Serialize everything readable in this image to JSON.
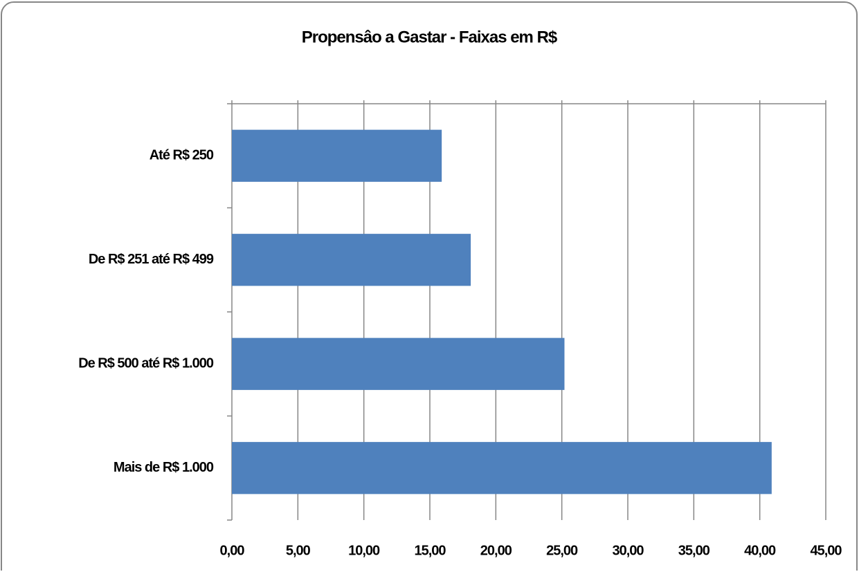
{
  "chart_data": {
    "type": "barh",
    "title": "Propensâo a Gastar -  Faixas em R$",
    "categories": [
      "Até R$ 250",
      "De R$ 251 até R$ 499",
      "De R$ 500 até R$ 1.000",
      "Mais de R$ 1.000"
    ],
    "values": [
      15.9,
      18.1,
      25.2,
      40.9
    ],
    "color": "#4f81bd",
    "xlim": [
      0,
      45
    ],
    "xticks": [
      {
        "value": 0,
        "label": "0,00"
      },
      {
        "value": 5,
        "label": "5,00"
      },
      {
        "value": 10,
        "label": "10,00"
      },
      {
        "value": 15,
        "label": "15,00"
      },
      {
        "value": 20,
        "label": "20,00"
      },
      {
        "value": 25,
        "label": "25,00"
      },
      {
        "value": 30,
        "label": "30,00"
      },
      {
        "value": 35,
        "label": "35,00"
      },
      {
        "value": 40,
        "label": "40,00"
      },
      {
        "value": 45,
        "label": "45,00"
      }
    ],
    "grid": true
  }
}
